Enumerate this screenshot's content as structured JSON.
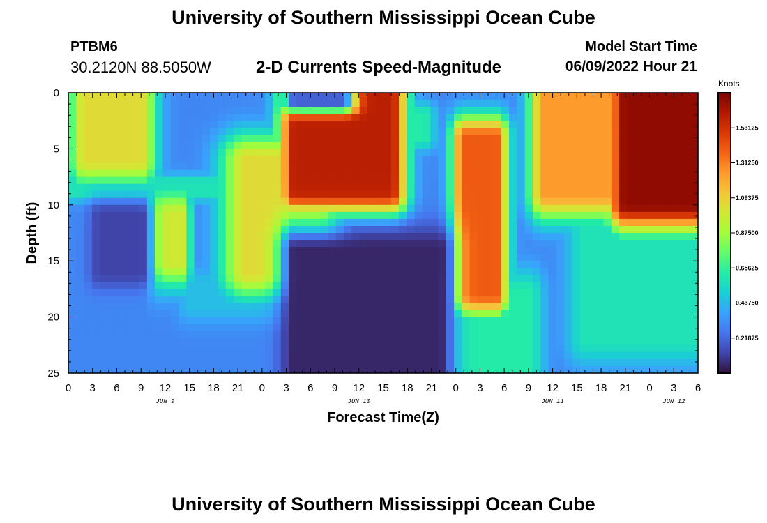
{
  "page": {
    "title": "University of Southern Mississippi Ocean Cube",
    "title_repeat": "University of Southern Mississippi Ocean Cube",
    "station_id": "PTBM6",
    "coordinates": "30.2120N  88.5050W",
    "subtitle": "2-D Currents Speed-Magnitude",
    "model_start_label": "Model Start Time",
    "model_start_value": "06/09/2022 Hour 21"
  },
  "colors": {
    "colormap": [
      "#30123b",
      "#4145ab",
      "#4675ed",
      "#39a2fc",
      "#1bcfd4",
      "#24eca6",
      "#61fc6c",
      "#a4fc3b",
      "#d1e834",
      "#f3c63a",
      "#fe9b2d",
      "#f36315",
      "#d93806",
      "#b11901",
      "#7a0402"
    ],
    "axis": "#000000",
    "background": "#ffffff"
  },
  "chart_data": {
    "type": "heatmap",
    "title": "2-D Currents Speed-Magnitude",
    "xlabel": "Forecast Time(Z)",
    "ylabel": "Depth (ft)",
    "x_hours_range": [
      0,
      78
    ],
    "ylim": [
      0,
      25
    ],
    "y_inverted": true,
    "x_tick_labels": [
      "0",
      "3",
      "6",
      "9",
      "12",
      "15",
      "18",
      "21",
      "0",
      "3",
      "6",
      "9",
      "12",
      "15",
      "18",
      "21",
      "0",
      "3",
      "6",
      "9",
      "12",
      "15",
      "18",
      "21",
      "0",
      "3",
      "6"
    ],
    "y_ticks": [
      0,
      5,
      10,
      15,
      20,
      25
    ],
    "y_tick_labels": [
      "0",
      "5",
      "10",
      "15",
      "20",
      "25"
    ],
    "date_labels": [
      {
        "text": "JUN 9",
        "hour": 12
      },
      {
        "text": "JUN 10",
        "hour": 36
      },
      {
        "text": "JUN 11",
        "hour": 60
      },
      {
        "text": "JUN 12",
        "hour": 75
      }
    ],
    "colorbar": {
      "unit": "Knots",
      "min": 0,
      "max": 1.75,
      "tick_values": [
        0.21875,
        0.4375,
        0.65625,
        0.875,
        1.09375,
        1.3125,
        1.53125
      ],
      "tick_labels": [
        "0.21875",
        "0.43750",
        "0.65625",
        "0.87500",
        "1.09375",
        "1.31250",
        "1.53125"
      ]
    },
    "speed_field_knots": {
      "background": 0.3,
      "components": [
        {
          "t": [
            2,
            9
          ],
          "z": [
            0,
            6
          ],
          "v": 1.05,
          "falloff": [
            2.5,
            3
          ]
        },
        {
          "t": [
            28,
            40
          ],
          "z": [
            0,
            9
          ],
          "v": 1.6,
          "falloff": [
            2.5,
            2.5
          ]
        },
        {
          "t": [
            49,
            53
          ],
          "z": [
            4,
            18
          ],
          "v": 1.4,
          "falloff": [
            2,
            2.5
          ]
        },
        {
          "t": [
            59,
            78
          ],
          "z": [
            0,
            9
          ],
          "v": 1.25,
          "falloff": [
            2.5,
            3
          ]
        },
        {
          "t": [
            69,
            78
          ],
          "z": [
            0,
            10
          ],
          "v": 1.7,
          "falloff": [
            3,
            3
          ]
        },
        {
          "t": [
            22,
            31
          ],
          "z": [
            6,
            16
          ],
          "v": 1.05,
          "falloff": [
            4,
            3
          ]
        },
        {
          "t": [
            11,
            14
          ],
          "z": [
            11,
            15
          ],
          "v": 1.0,
          "falloff": [
            1.5,
            3
          ]
        },
        {
          "t": [
            0,
            11
          ],
          "z": [
            8,
            9
          ],
          "v": 0.58,
          "falloff": [
            1,
            1
          ]
        },
        {
          "t": [
            11,
            32
          ],
          "z": [
            8,
            9
          ],
          "v": 0.58,
          "falloff": [
            1,
            1
          ]
        },
        {
          "t": [
            28,
            44
          ],
          "z": [
            2,
            4
          ],
          "v": 0.62,
          "falloff": [
            2,
            1.5
          ]
        },
        {
          "t": [
            45,
            57
          ],
          "z": [
            18,
            25
          ],
          "v": 0.62,
          "falloff": [
            2.5,
            3
          ]
        },
        {
          "t": [
            64,
            78
          ],
          "z": [
            12,
            22
          ],
          "v": 0.58,
          "falloff": [
            3,
            3
          ]
        },
        {
          "t": [
            15,
            30
          ],
          "z": [
            17,
            19
          ],
          "v": 0.45,
          "falloff": [
            2,
            2
          ]
        },
        {
          "t": [
            28,
            46
          ],
          "z": [
            14,
            25
          ],
          "v": 0.05,
          "falloff": [
            2.5,
            3
          ],
          "mode": "min"
        },
        {
          "t": [
            4,
            9
          ],
          "z": [
            11,
            16
          ],
          "v": 0.12,
          "falloff": [
            2,
            2
          ],
          "mode": "min"
        },
        {
          "t": [
            28,
            34
          ],
          "z": [
            0,
            1
          ],
          "v": 0.2,
          "falloff": [
            2,
            1
          ],
          "mode": "min"
        }
      ]
    }
  }
}
